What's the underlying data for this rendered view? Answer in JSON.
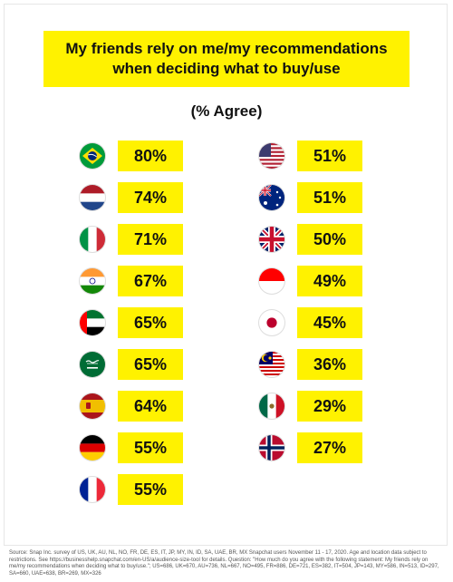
{
  "title_lines": [
    "My friends rely on me/my recommendations",
    "when deciding what to buy/use"
  ],
  "subtitle": "(% Agree)",
  "chart_data": {
    "type": "bar",
    "title": "My friends rely on me/my recommendations when deciding what to buy/use",
    "subtitle": "(% Agree)",
    "categories": [
      "Brazil",
      "Netherlands",
      "Italy",
      "India",
      "United Arab Emirates",
      "Saudi Arabia",
      "Spain",
      "Germany",
      "France",
      "United States",
      "Australia",
      "United Kingdom",
      "Indonesia",
      "Japan",
      "Malaysia",
      "Mexico",
      "Norway"
    ],
    "values": [
      80,
      74,
      71,
      67,
      65,
      65,
      64,
      55,
      55,
      51,
      51,
      50,
      49,
      45,
      36,
      29,
      27
    ],
    "labels": [
      "80%",
      "74%",
      "71%",
      "67%",
      "65%",
      "65%",
      "64%",
      "55%",
      "55%",
      "51%",
      "51%",
      "50%",
      "49%",
      "45%",
      "36%",
      "29%",
      "27%"
    ],
    "flags": [
      "brazil-flag",
      "netherlands-flag",
      "italy-flag",
      "india-flag",
      "uae-flag",
      "saudi-arabia-flag",
      "spain-flag",
      "germany-flag",
      "france-flag",
      "usa-flag",
      "australia-flag",
      "uk-flag",
      "indonesia-flag",
      "japan-flag",
      "malaysia-flag",
      "mexico-flag",
      "norway-flag"
    ],
    "unit": "%",
    "ylim": [
      0,
      100
    ]
  },
  "colors": {
    "accent": "#fff200",
    "text": "#111111"
  },
  "source": "Source: Snap Inc. survey of US, UK, AU, NL, NO, FR, DE, ES, IT, JP, MY, IN, ID, SA, UAE, BR, MX Snapchat users November 11 - 17, 2020. Age and location data subject to restrictions. See https://businesshelp.snapchat.com/en-US/a/audience-size-tool for details. Question: \"How much do you agree with the following statement: My friends rely on me/my recommendations when deciding what to buy/use.\"; US=686, UK=670, AU=736, NL=667, NO=495, FR=886, DE=721, ES=382, IT=504, JP=143, MY=586, IN=513, ID=297, SA=660, UAE=638, BR=269, MX=326"
}
